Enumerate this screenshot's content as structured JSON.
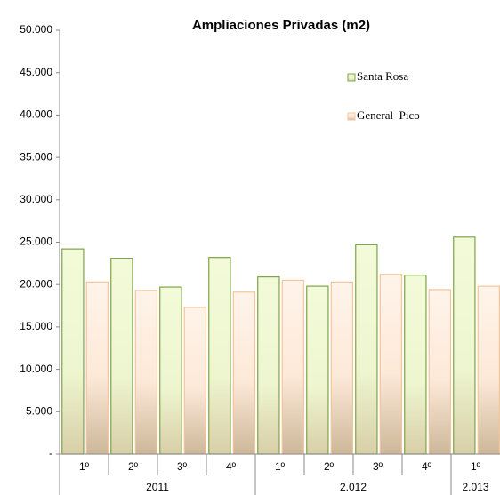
{
  "chart_data": {
    "type": "bar",
    "title": "Ampliaciones Privadas (m2)",
    "groups": [
      {
        "name": "2011",
        "categories": [
          "1º",
          "2º",
          "3º",
          "4º"
        ]
      },
      {
        "name": "2.012",
        "categories": [
          "1º",
          "2º",
          "3º",
          "4º"
        ]
      },
      {
        "name": "2.013",
        "categories": [
          "1º"
        ]
      }
    ],
    "series": [
      {
        "name": "Santa Rosa",
        "color": "#7ea446",
        "values": [
          24200,
          23100,
          19700,
          23200,
          20900,
          19800,
          24700,
          21100,
          25600
        ]
      },
      {
        "name": "General  Pico",
        "color": "#f5c49a",
        "values": [
          20300,
          19300,
          17300,
          19100,
          20500,
          20300,
          21200,
          19400,
          19800
        ]
      }
    ],
    "ylim": [
      0,
      50000
    ],
    "yticks": [
      {
        "value": 0,
        "label": "-"
      },
      {
        "value": 5000,
        "label": "5.000"
      },
      {
        "value": 10000,
        "label": "10.000"
      },
      {
        "value": 15000,
        "label": "15.000"
      },
      {
        "value": 20000,
        "label": "20.000"
      },
      {
        "value": 25000,
        "label": "25.000"
      },
      {
        "value": 30000,
        "label": "30.000"
      },
      {
        "value": 35000,
        "label": "35.000"
      },
      {
        "value": 40000,
        "label": "40.000"
      },
      {
        "value": 45000,
        "label": "45.000"
      },
      {
        "value": 50000,
        "label": "50.000"
      }
    ],
    "grid": false,
    "legend": "top-right"
  }
}
